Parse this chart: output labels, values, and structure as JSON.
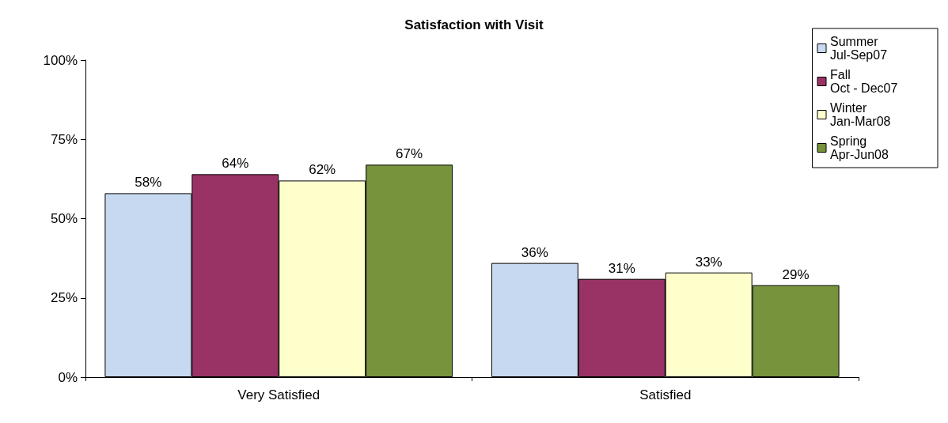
{
  "chart_data": {
    "type": "bar",
    "title": "Satisfaction with Visit",
    "categories": [
      "Very Satisfied",
      "Satisfied"
    ],
    "series": [
      {
        "name": "Summer\nJul-Sep07",
        "color": "#c6d9f0",
        "values": [
          58,
          36
        ],
        "value_labels": [
          "58%",
          "36%"
        ]
      },
      {
        "name": "Fall\nOct - Dec07",
        "color": "#993366",
        "values": [
          64,
          31
        ],
        "value_labels": [
          "64%",
          "31%"
        ]
      },
      {
        "name": "Winter\nJan-Mar08",
        "color": "#ffffcc",
        "values": [
          62,
          33
        ],
        "value_labels": [
          "62%",
          "33%"
        ]
      },
      {
        "name": "Spring\nApr-Jun08",
        "color": "#77933c",
        "values": [
          67,
          29
        ],
        "value_labels": [
          "67%",
          "29%"
        ]
      }
    ],
    "ylim": [
      0,
      100
    ],
    "yticks": [
      {
        "value": 0,
        "label": "0%"
      },
      {
        "value": 25,
        "label": "25%"
      },
      {
        "value": 50,
        "label": "50%"
      },
      {
        "value": 75,
        "label": "75%"
      },
      {
        "value": 100,
        "label": "100%"
      }
    ],
    "grid": false,
    "legend": "top right"
  }
}
